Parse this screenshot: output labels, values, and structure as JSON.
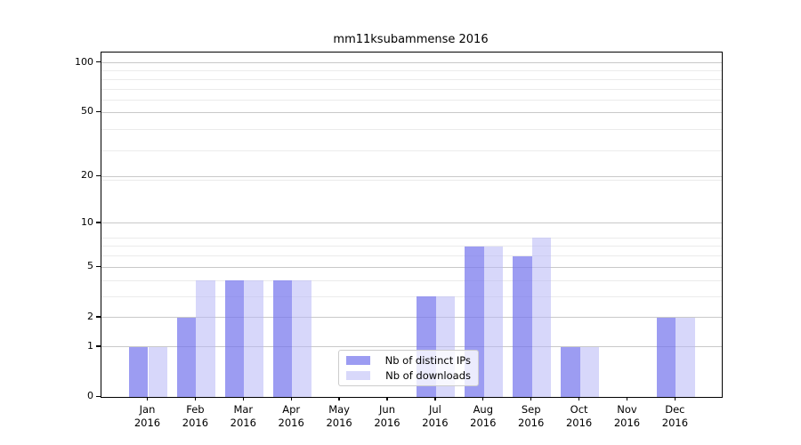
{
  "title": "mm11ksubammense 2016",
  "legend": {
    "items": [
      {
        "label": "Nb of distinct IPs",
        "swatch_color": "#9c9cf2"
      },
      {
        "label": "Nb of downloads",
        "swatch_color": "#d8d8fa"
      }
    ]
  },
  "chart_data": {
    "type": "bar",
    "title": "mm11ksubammense 2016",
    "categories": [
      "Jan",
      "Feb",
      "Mar",
      "Apr",
      "May",
      "Jun",
      "Jul",
      "Aug",
      "Sep",
      "Oct",
      "Nov",
      "Dec"
    ],
    "category_year": "2016",
    "series": [
      {
        "name": "Nb of distinct IPs",
        "fill": "rgba(118,118,237,0.72)",
        "swatch_color": "#9c9cf2",
        "values": [
          1,
          2,
          4,
          4,
          0,
          0,
          3,
          7,
          6,
          1,
          0,
          2
        ]
      },
      {
        "name": "Nb of downloads",
        "fill": "rgba(183,183,246,0.55)",
        "swatch_color": "#d8d8fa",
        "values": [
          1,
          4,
          4,
          4,
          0,
          0,
          3,
          7,
          8,
          1,
          0,
          2
        ]
      }
    ],
    "xlabel": "",
    "ylabel": "",
    "yscale": "log1p",
    "ylim": [
      0,
      115
    ],
    "yticks": [
      0,
      1,
      2,
      5,
      10,
      20,
      50,
      100
    ],
    "ytick_labels": [
      "0",
      "1",
      "2",
      "5",
      "10",
      "20",
      "50",
      "100"
    ],
    "minor_yticks": [
      3,
      4,
      6,
      7,
      8,
      19,
      29,
      39,
      59,
      69,
      79,
      89
    ],
    "grid": "on",
    "legend_position": "lower center-right inside plot"
  }
}
